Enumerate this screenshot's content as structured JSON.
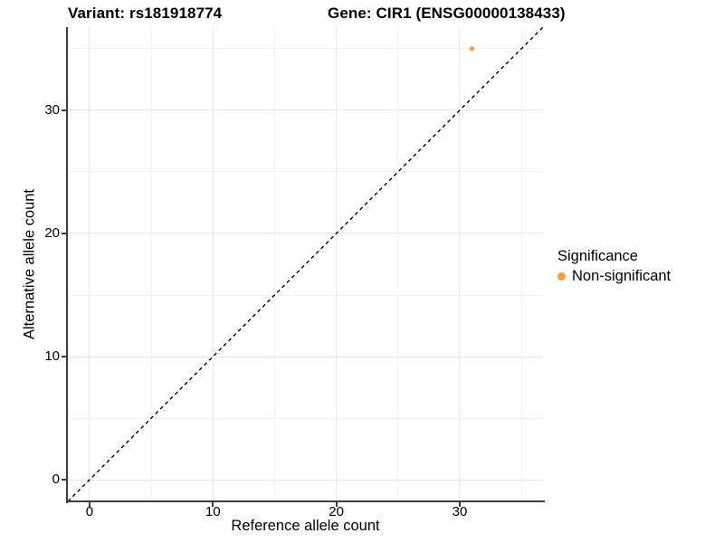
{
  "titles": {
    "left": "Variant: rs181918774",
    "right": "Gene: CIR1 (ENSG00000138433)"
  },
  "chart_data": {
    "type": "scatter",
    "title_left": "Variant: rs181918774",
    "title_right": "Gene: CIR1 (ENSG00000138433)",
    "xlabel": "Reference allele count",
    "ylabel": "Alternative allele count",
    "xlim": [
      -1.75,
      36.75
    ],
    "ylim": [
      -1.75,
      36.75
    ],
    "x_major_ticks": [
      0,
      10,
      20,
      30
    ],
    "x_minor_ticks": [
      5,
      15,
      25,
      35
    ],
    "y_major_ticks": [
      0,
      10,
      20,
      30
    ],
    "y_minor_ticks": [
      5,
      15,
      25,
      35
    ],
    "grid": true,
    "legend_position": "right",
    "series": [
      {
        "name": "Non-significant",
        "color": "#FAA028",
        "points": [
          {
            "x": 31,
            "y": 35
          }
        ]
      }
    ],
    "reference_line": {
      "type": "identity",
      "slope": 1,
      "intercept": 0,
      "style": "dashed",
      "color": "#000000"
    }
  },
  "legend": {
    "title": "Significance",
    "items": [
      {
        "label": "Non-significant",
        "color": "#FAA028"
      }
    ]
  },
  "colors": {
    "point_orange": "#FAA028",
    "grid_major": "#e7e7e7",
    "grid_minor": "#f2f2f2",
    "axis_line": "#3e3e3e",
    "dashed_line": "#000000"
  }
}
